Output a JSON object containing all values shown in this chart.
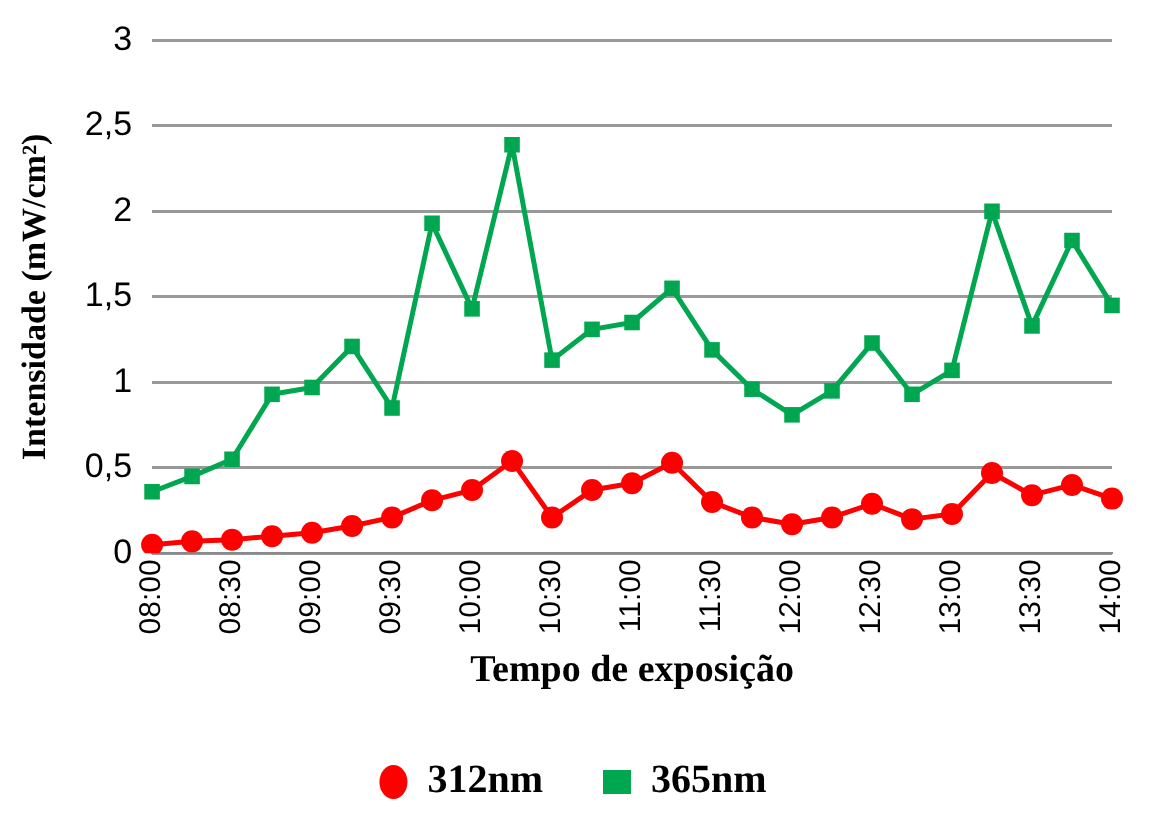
{
  "chart_data": {
    "type": "line",
    "xlabel": "Tempo de exposição",
    "ylabel": "Intensidade (mW/cm²)",
    "categories": [
      "08:00",
      null,
      "08:30",
      null,
      "09:00",
      null,
      "09:30",
      null,
      "10:00",
      null,
      "10:30",
      null,
      "11:00",
      null,
      "11:30",
      null,
      "12:00",
      null,
      "12:30",
      null,
      "13:00",
      null,
      "13:30",
      null,
      "14:00"
    ],
    "series": [
      {
        "name": "312nm",
        "color": "#ff0000",
        "marker": "circle",
        "values": [
          0.05,
          0.07,
          0.08,
          0.1,
          0.12,
          0.16,
          0.21,
          0.31,
          0.37,
          0.54,
          0.21,
          0.37,
          0.41,
          0.53,
          0.3,
          0.21,
          0.17,
          0.21,
          0.29,
          0.2,
          0.23,
          0.47,
          0.34,
          0.4,
          0.32
        ]
      },
      {
        "name": "365nm",
        "color": "#00a650",
        "marker": "square",
        "values": [
          0.36,
          0.45,
          0.55,
          0.93,
          0.97,
          1.21,
          0.85,
          1.93,
          1.43,
          2.39,
          1.13,
          1.31,
          1.35,
          1.55,
          1.19,
          0.96,
          0.81,
          0.95,
          1.23,
          0.93,
          1.07,
          2.0,
          1.33,
          1.83,
          1.45
        ]
      }
    ],
    "ylim": [
      0,
      3
    ],
    "yticks": [
      0,
      {
        "value": 0.5,
        "label": "0,5"
      },
      1,
      {
        "value": 1.5,
        "label": "1,5"
      },
      2,
      {
        "value": 2.5,
        "label": "2,5"
      },
      3
    ],
    "grid": "y",
    "legend": "bottom"
  }
}
